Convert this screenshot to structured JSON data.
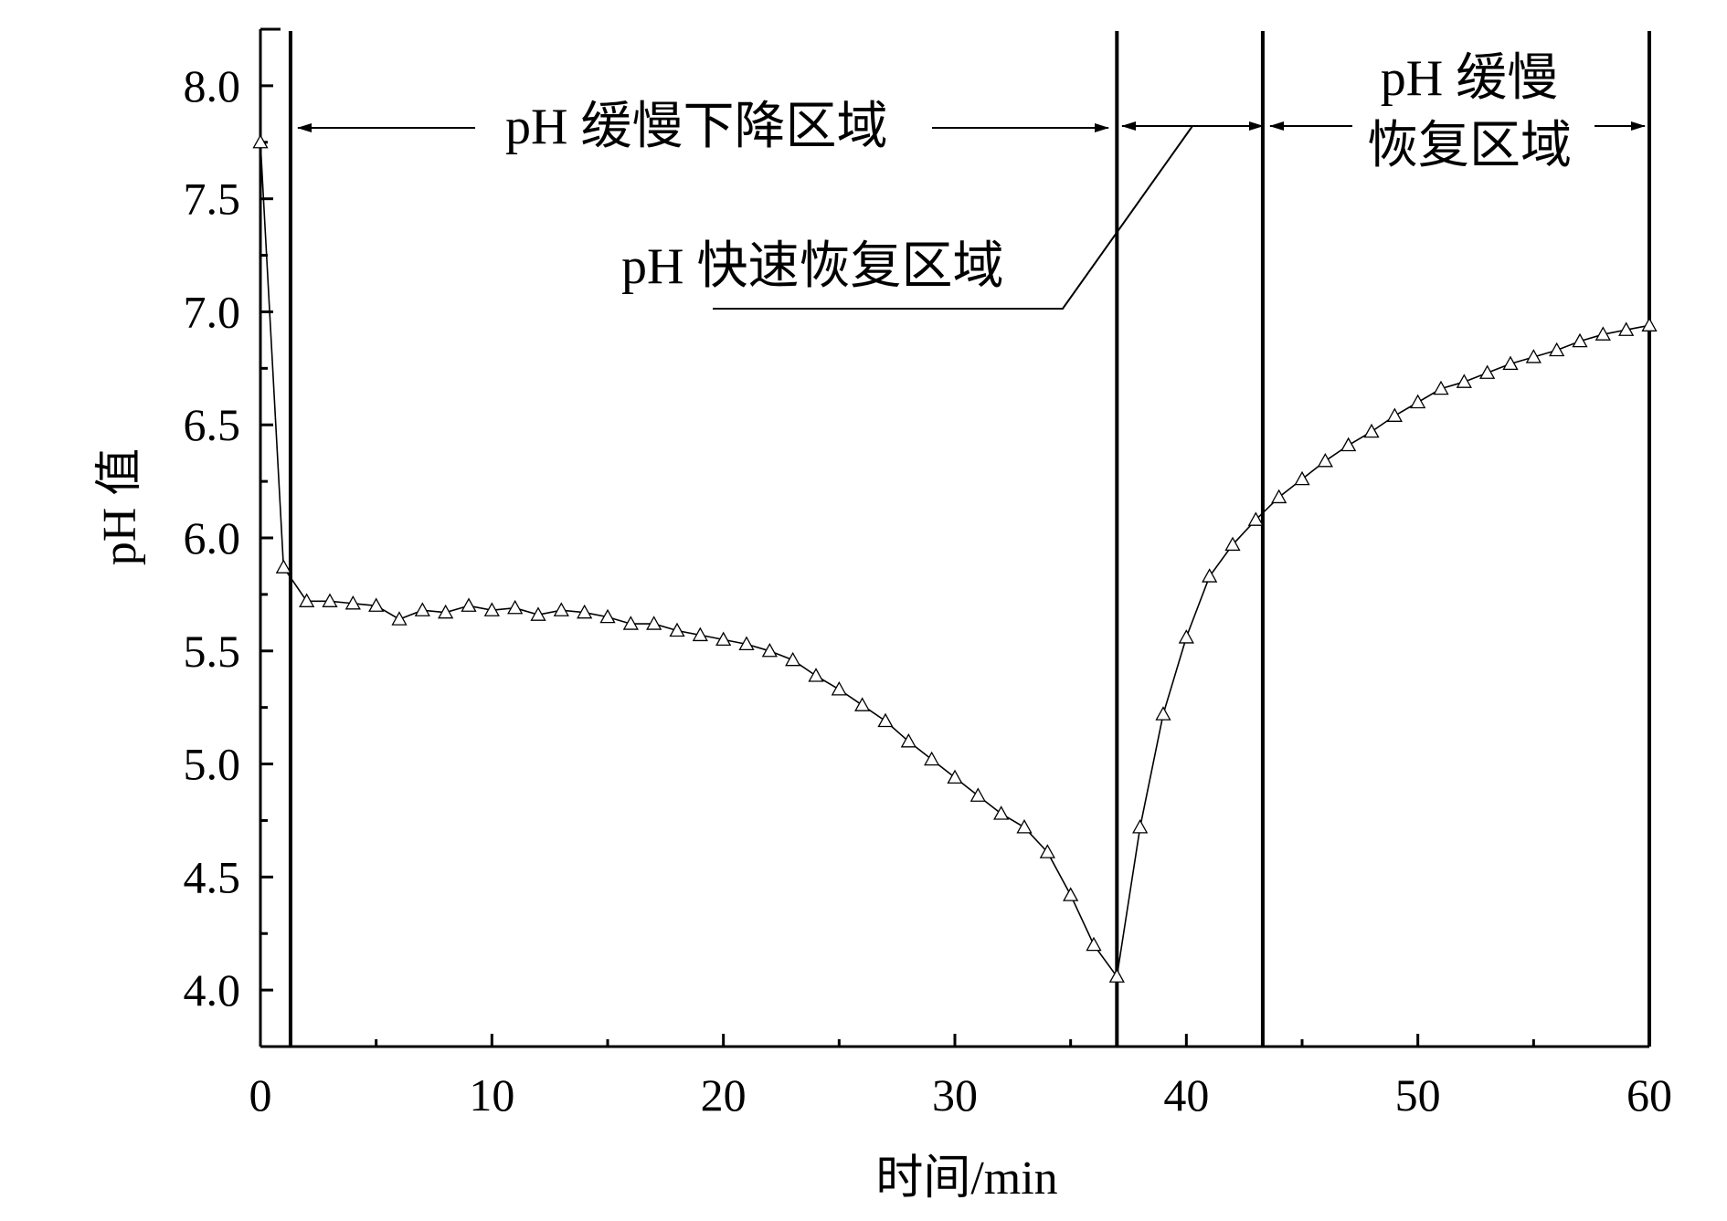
{
  "chart_data": {
    "type": "line",
    "xlabel": "时间/min",
    "ylabel": "pH 值",
    "xlim": [
      0,
      60
    ],
    "ylim": [
      3.75,
      8.25
    ],
    "xticks": [
      0,
      10,
      20,
      30,
      40,
      50,
      60
    ],
    "xtick_labels": [
      "0",
      "10",
      "20",
      "30",
      "40",
      "50",
      "60"
    ],
    "yticks": [
      4.0,
      4.5,
      5.0,
      5.5,
      6.0,
      6.5,
      7.0,
      7.5,
      8.0
    ],
    "ytick_labels": [
      "4.0",
      "4.5",
      "5.0",
      "5.5",
      "6.0",
      "6.5",
      "7.0",
      "7.5",
      "8.0"
    ],
    "grid": false,
    "marker": "open-triangle",
    "series": [
      {
        "x": [
          0,
          1,
          2,
          3,
          4,
          5,
          6,
          7,
          8,
          9,
          10,
          11,
          12,
          13,
          14,
          15,
          16,
          17,
          18,
          19,
          20,
          21,
          22,
          23,
          24,
          25,
          26,
          27,
          28,
          29,
          30,
          31,
          32,
          33,
          34,
          35,
          36,
          37,
          38,
          39,
          40,
          41,
          42,
          43,
          44,
          45,
          46,
          47,
          48,
          49,
          50,
          51,
          52,
          53,
          54,
          55,
          56,
          57,
          58,
          59,
          60
        ],
        "y": [
          7.75,
          5.87,
          5.72,
          5.72,
          5.71,
          5.7,
          5.64,
          5.68,
          5.67,
          5.7,
          5.68,
          5.69,
          5.66,
          5.68,
          5.67,
          5.65,
          5.62,
          5.62,
          5.59,
          5.57,
          5.55,
          5.53,
          5.5,
          5.46,
          5.39,
          5.33,
          5.26,
          5.19,
          5.1,
          5.02,
          4.94,
          4.86,
          4.78,
          4.72,
          4.61,
          4.42,
          4.2,
          4.06,
          4.72,
          5.22,
          5.56,
          5.83,
          5.97,
          6.08,
          6.18,
          6.26,
          6.34,
          6.41,
          6.47,
          6.54,
          6.6,
          6.66,
          6.69,
          6.73,
          6.77,
          6.8,
          6.83,
          6.87,
          6.9,
          6.92,
          6.94
        ]
      }
    ],
    "region_boundaries": [
      1.3,
      37,
      43.3,
      60
    ],
    "regions": [
      {
        "label": "pH 缓慢下降区域"
      },
      {
        "label": "pH 快速恢复区域"
      },
      {
        "label_line1": "pH 缓慢",
        "label_line2": "恢复区域"
      }
    ]
  }
}
